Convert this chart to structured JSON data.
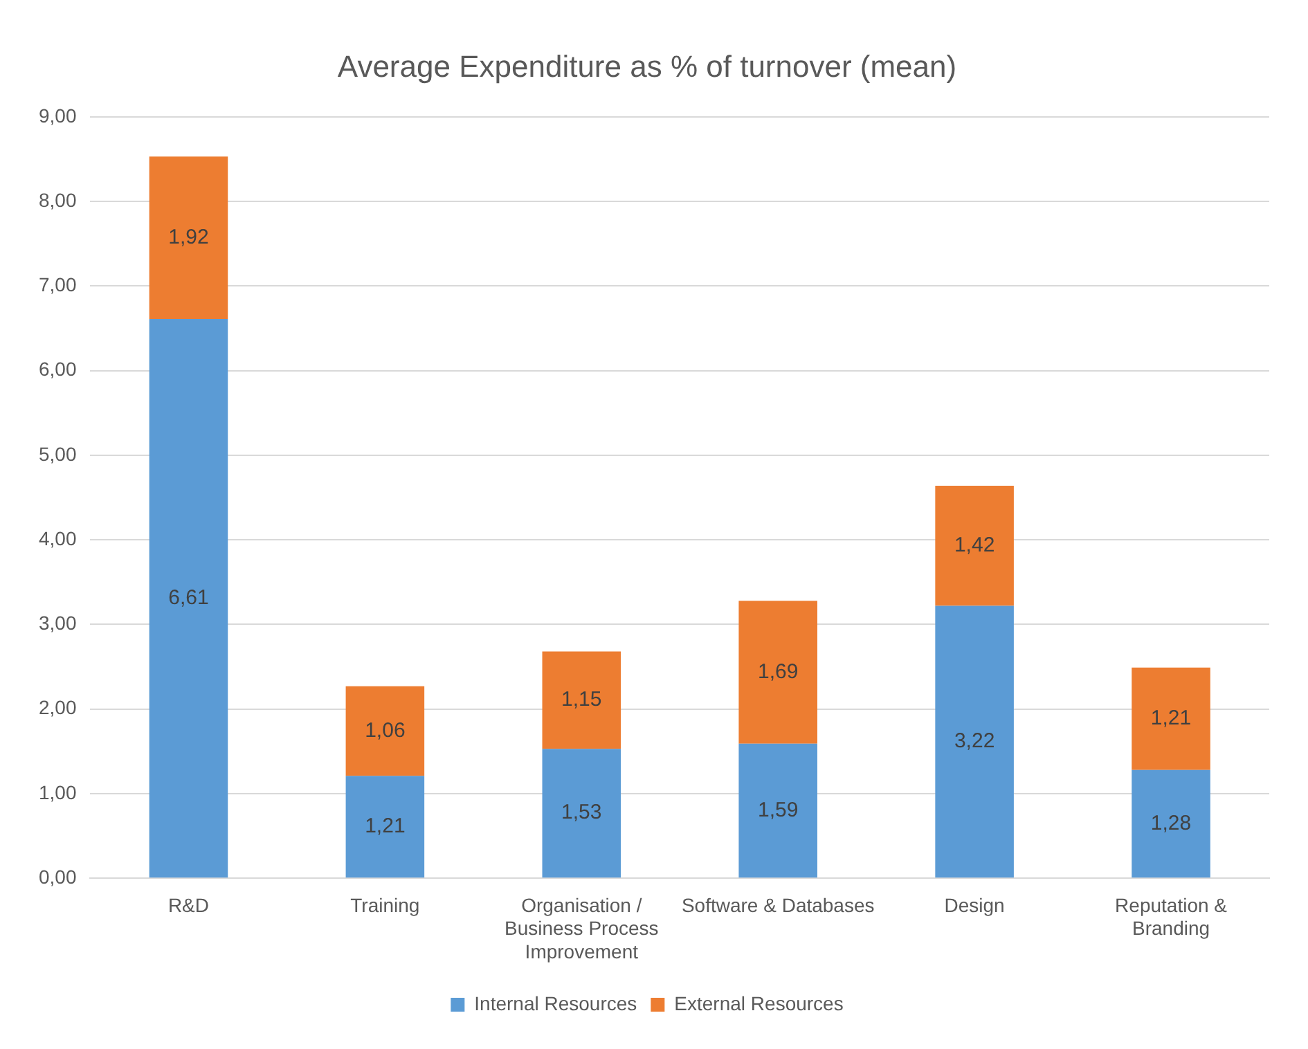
{
  "chart_data": {
    "type": "bar",
    "title": "Average Expenditure as % of turnover (mean)",
    "stacked": true,
    "categories": [
      "R&D",
      "Training",
      "Organisation / Business Process Improvement",
      "Software & Databases",
      "Design",
      "Reputation & Branding"
    ],
    "series": [
      {
        "name": "Internal Resources",
        "color": "#5b9bd5",
        "values": [
          6.61,
          1.21,
          1.53,
          1.59,
          3.22,
          1.28
        ],
        "value_labels": [
          "6,61",
          "1,21",
          "1,53",
          "1,59",
          "3,22",
          "1,28"
        ]
      },
      {
        "name": "External Resources",
        "color": "#ed7d31",
        "values": [
          1.92,
          1.06,
          1.15,
          1.69,
          1.42,
          1.21
        ],
        "value_labels": [
          "1,92",
          "1,06",
          "1,15",
          "1,69",
          "1,42",
          "1,21"
        ]
      }
    ],
    "ylim": [
      0,
      9
    ],
    "yticks": [
      {
        "value": 0,
        "label": "0,00"
      },
      {
        "value": 1,
        "label": "1,00"
      },
      {
        "value": 2,
        "label": "2,00"
      },
      {
        "value": 3,
        "label": "3,00"
      },
      {
        "value": 4,
        "label": "4,00"
      },
      {
        "value": 5,
        "label": "5,00"
      },
      {
        "value": 6,
        "label": "6,00"
      },
      {
        "value": 7,
        "label": "7,00"
      },
      {
        "value": 8,
        "label": "8,00"
      },
      {
        "value": 9,
        "label": "9,00"
      }
    ],
    "grid": "y",
    "legend": "bottom"
  }
}
